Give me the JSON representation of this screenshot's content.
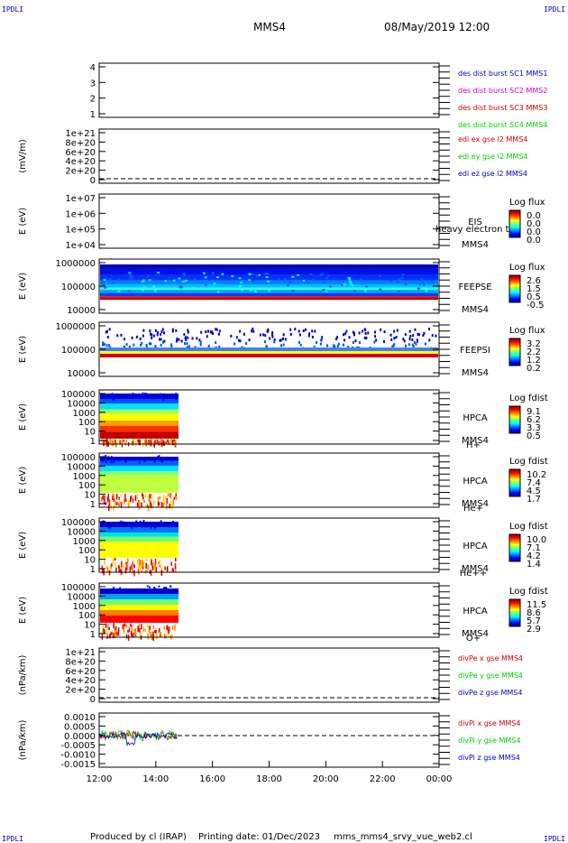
{
  "header": {
    "corner_left_top": "IPDLI",
    "corner_right_top": "IPDLI",
    "corner_left_bottom": "IPDLI",
    "corner_right_bottom": "IPDLI",
    "title": "MMS4",
    "date": "08/May/2019 12:00"
  },
  "footer": {
    "produced": "Produced by cl (IRAP)",
    "printing": "Printing date: 01/Dec/2023",
    "filename": "mms_mms4_srvy_vue_web2.cl"
  },
  "colors": {
    "blue": "#0000cc",
    "magenta": "#cc00cc",
    "red": "#cc0000",
    "green": "#00cc00"
  },
  "chart_data": {
    "type": "line",
    "x_ticks": [
      "12:00",
      "14:00",
      "16:00",
      "18:00",
      "20:00",
      "22:00",
      "00:00"
    ],
    "panels": [
      {
        "id": "p1",
        "yticks": [
          "4",
          "3",
          "2",
          "1"
        ],
        "ylabel": "",
        "legend": [
          {
            "text": "des dist burst SC1 MMS1",
            "color": "#0000cc"
          },
          {
            "text": "des dist burst SC2 MMS2",
            "color": "#cc00cc"
          },
          {
            "text": "des dist burst SC3 MMS3",
            "color": "#cc0000"
          },
          {
            "text": "des dist burst SC4 MMS4",
            "color": "#00cc00"
          }
        ]
      },
      {
        "id": "p2",
        "yticks": [
          "1e+21",
          "8e+20",
          "6e+20",
          "4e+20",
          "2e+20",
          "0"
        ],
        "ylabel": "(mV/m)",
        "zero_line": true,
        "legend": [
          {
            "text": "edi ex gse l2 MMS4",
            "color": "#cc0000"
          },
          {
            "text": "edi ey gse l2 MMS4",
            "color": "#00cc00"
          },
          {
            "text": "edi ez gse l2 MMS4",
            "color": "#0000cc"
          }
        ]
      },
      {
        "id": "p3",
        "yticks": [
          "1e+07",
          "1e+06",
          "1e+05",
          "1e+04"
        ],
        "ylabel": "E (eV)",
        "instrument": "EIS",
        "species": "",
        "overlay": "heavy electron to",
        "sc": "MMS4",
        "cbar_title": "Log flux",
        "cbar_ticks": [
          "0.0",
          "0.0",
          "0.0",
          "0.0"
        ]
      },
      {
        "id": "p4",
        "yticks": [
          "1000000",
          "100000",
          "10000"
        ],
        "ylabel": "E (eV)",
        "instrument": "FEEPSE",
        "species": "",
        "sc": "MMS4",
        "cbar_title": "Log flux",
        "cbar_ticks": [
          "2.6",
          "1.5",
          "0.5",
          "-0.5"
        ]
      },
      {
        "id": "p5",
        "yticks": [
          "1000000",
          "100000",
          "10000"
        ],
        "ylabel": "E (eV)",
        "instrument": "FEEPSI",
        "species": "",
        "sc": "MMS4",
        "cbar_title": "Log flux",
        "cbar_ticks": [
          "3.2",
          "2.2",
          "1.2",
          "0.2"
        ]
      },
      {
        "id": "p6",
        "yticks": [
          "100000",
          "10000",
          "1000",
          "100",
          "10",
          "1"
        ],
        "ylabel": "E (eV)",
        "instrument": "HPCA",
        "sc": "MMS4",
        "species": "H+",
        "cbar_title": "Log fdist",
        "cbar_ticks": [
          "9.1",
          "6.2",
          "3.3",
          "0.5"
        ]
      },
      {
        "id": "p7",
        "yticks": [
          "100000",
          "10000",
          "1000",
          "100",
          "10",
          "1"
        ],
        "ylabel": "E (eV)",
        "instrument": "HPCA",
        "sc": "MMS4",
        "species": "He+",
        "cbar_title": "Log fdist",
        "cbar_ticks": [
          "10.2",
          "7.4",
          "4.5",
          "1.7"
        ]
      },
      {
        "id": "p8",
        "yticks": [
          "100000",
          "10000",
          "1000",
          "100",
          "10",
          "1"
        ],
        "ylabel": "E (eV)",
        "instrument": "HPCA",
        "sc": "MMS4",
        "species": "He++",
        "cbar_title": "Log fdist",
        "cbar_ticks": [
          "10.0",
          "7.1",
          "4.2",
          "1.4"
        ]
      },
      {
        "id": "p9",
        "yticks": [
          "100000",
          "10000",
          "1000",
          "100",
          "10",
          "1"
        ],
        "ylabel": "E (eV)",
        "instrument": "HPCA",
        "sc": "MMS4",
        "species": "O+",
        "cbar_title": "Log fdist",
        "cbar_ticks": [
          "11.5",
          "8.6",
          "5.7",
          "2.9"
        ]
      },
      {
        "id": "p10",
        "yticks": [
          "1e+21",
          "8e+20",
          "6e+20",
          "4e+20",
          "2e+20",
          "0"
        ],
        "ylabel": "(nPa/km)",
        "zero_line": true,
        "legend": [
          {
            "text": "divPe x gse MMS4",
            "color": "#cc0000"
          },
          {
            "text": "divPe y gse MMS4",
            "color": "#00cc00"
          },
          {
            "text": "divPe z gse MMS4",
            "color": "#0000cc"
          }
        ]
      },
      {
        "id": "p11",
        "yticks": [
          "0.0010",
          "0.0005",
          "0.0000",
          "-0.0005",
          "-0.0010",
          "-0.0015"
        ],
        "ylabel": "(nPa/km)",
        "zero_line": true,
        "legend": [
          {
            "text": "divPi x gse MMS4",
            "color": "#cc0000"
          },
          {
            "text": "divPi y gse MMS4",
            "color": "#00cc00"
          },
          {
            "text": "divPi z gse MMS4",
            "color": "#0000cc"
          }
        ]
      }
    ]
  }
}
